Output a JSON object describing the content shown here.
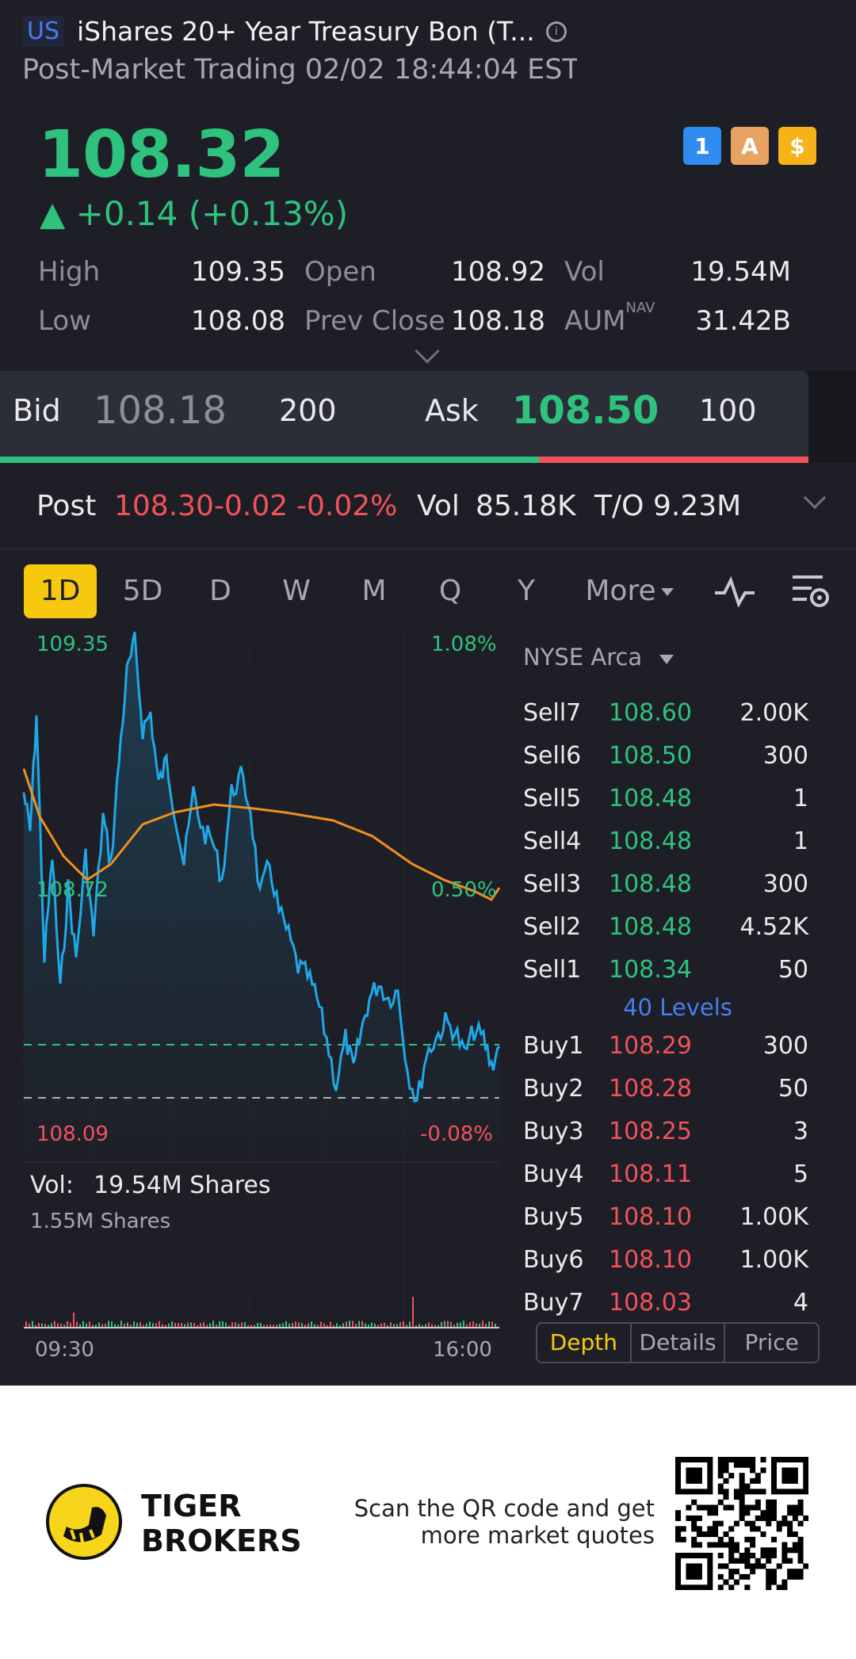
{
  "header": {
    "market_badge": "US",
    "title": "iShares 20+ Year Treasury Bon (T...",
    "subtitle": "Post-Market Trading 02/02 18:44:04 EST"
  },
  "quote": {
    "price": "108.32",
    "change": "▲ +0.14 (+0.13%)",
    "badges": [
      "lightning-icon",
      "layers-icon",
      "dollar-icon"
    ],
    "badge_texts": [
      "1",
      "A",
      "$"
    ]
  },
  "stats": {
    "high_label": "High",
    "high": "109.35",
    "open_label": "Open",
    "open": "108.92",
    "vol_label": "Vol",
    "vol": "19.54M",
    "low_label": "Low",
    "low": "108.08",
    "prev_close_label": "Prev Close",
    "prev_close": "108.18",
    "aum_label": "AUM",
    "aum_sup": "NAV",
    "aum": "31.42B"
  },
  "bidask": {
    "bid_label": "Bid",
    "bid_price": "108.18",
    "bid_qty": "200",
    "ask_label": "Ask",
    "ask_price": "108.50",
    "ask_qty": "100",
    "bid_ratio": 0.667
  },
  "post": {
    "label": "Post",
    "price": "108.30",
    "change": "-0.02",
    "change_pct": "-0.02%",
    "vol_label": "Vol",
    "vol": "85.18K",
    "to_label": "T/O",
    "to": "9.23M"
  },
  "tabs": [
    "1D",
    "5D",
    "D",
    "W",
    "M",
    "Q",
    "Y",
    "More"
  ],
  "active_tab": "1D",
  "chart": {
    "high_label": "109.35",
    "high_pct": "1.08%",
    "mid_label": "108.72",
    "mid_pct": "0.50%",
    "low_label": "108.09",
    "low_pct": "-0.08%",
    "vol_label": "Vol:",
    "vol_value": "19.54M Shares",
    "vol_max": "1.55M Shares",
    "time_start": "09:30",
    "time_end": "16:00"
  },
  "colors": {
    "up": "#2ec27e",
    "down": "#f2525b",
    "price_line": "#1fa8e8",
    "avg_line": "#f0901e",
    "accent": "#f6c90e",
    "link": "#4a7cf0"
  },
  "orderbook": {
    "exchange": "NYSE Arca",
    "levels_link": "40 Levels",
    "sells": [
      {
        "label": "Sell7",
        "price": "108.60",
        "qty": "2.00K"
      },
      {
        "label": "Sell6",
        "price": "108.50",
        "qty": "300"
      },
      {
        "label": "Sell5",
        "price": "108.48",
        "qty": "1"
      },
      {
        "label": "Sell4",
        "price": "108.48",
        "qty": "1"
      },
      {
        "label": "Sell3",
        "price": "108.48",
        "qty": "300"
      },
      {
        "label": "Sell2",
        "price": "108.48",
        "qty": "4.52K"
      },
      {
        "label": "Sell1",
        "price": "108.34",
        "qty": "50"
      }
    ],
    "buys": [
      {
        "label": "Buy1",
        "price": "108.29",
        "qty": "300"
      },
      {
        "label": "Buy2",
        "price": "108.28",
        "qty": "50"
      },
      {
        "label": "Buy3",
        "price": "108.25",
        "qty": "3"
      },
      {
        "label": "Buy4",
        "price": "108.11",
        "qty": "5"
      },
      {
        "label": "Buy5",
        "price": "108.10",
        "qty": "1.00K"
      },
      {
        "label": "Buy6",
        "price": "108.10",
        "qty": "1.00K"
      },
      {
        "label": "Buy7",
        "price": "108.03",
        "qty": "4"
      }
    ],
    "tabs": [
      "Depth",
      "Details",
      "Price"
    ],
    "active_tab": "Depth"
  },
  "footer": {
    "brand_line1": "TIGER",
    "brand_line2": "BROKERS",
    "scan_line1": "Scan the QR code and get",
    "scan_line2": "more market quotes"
  }
}
